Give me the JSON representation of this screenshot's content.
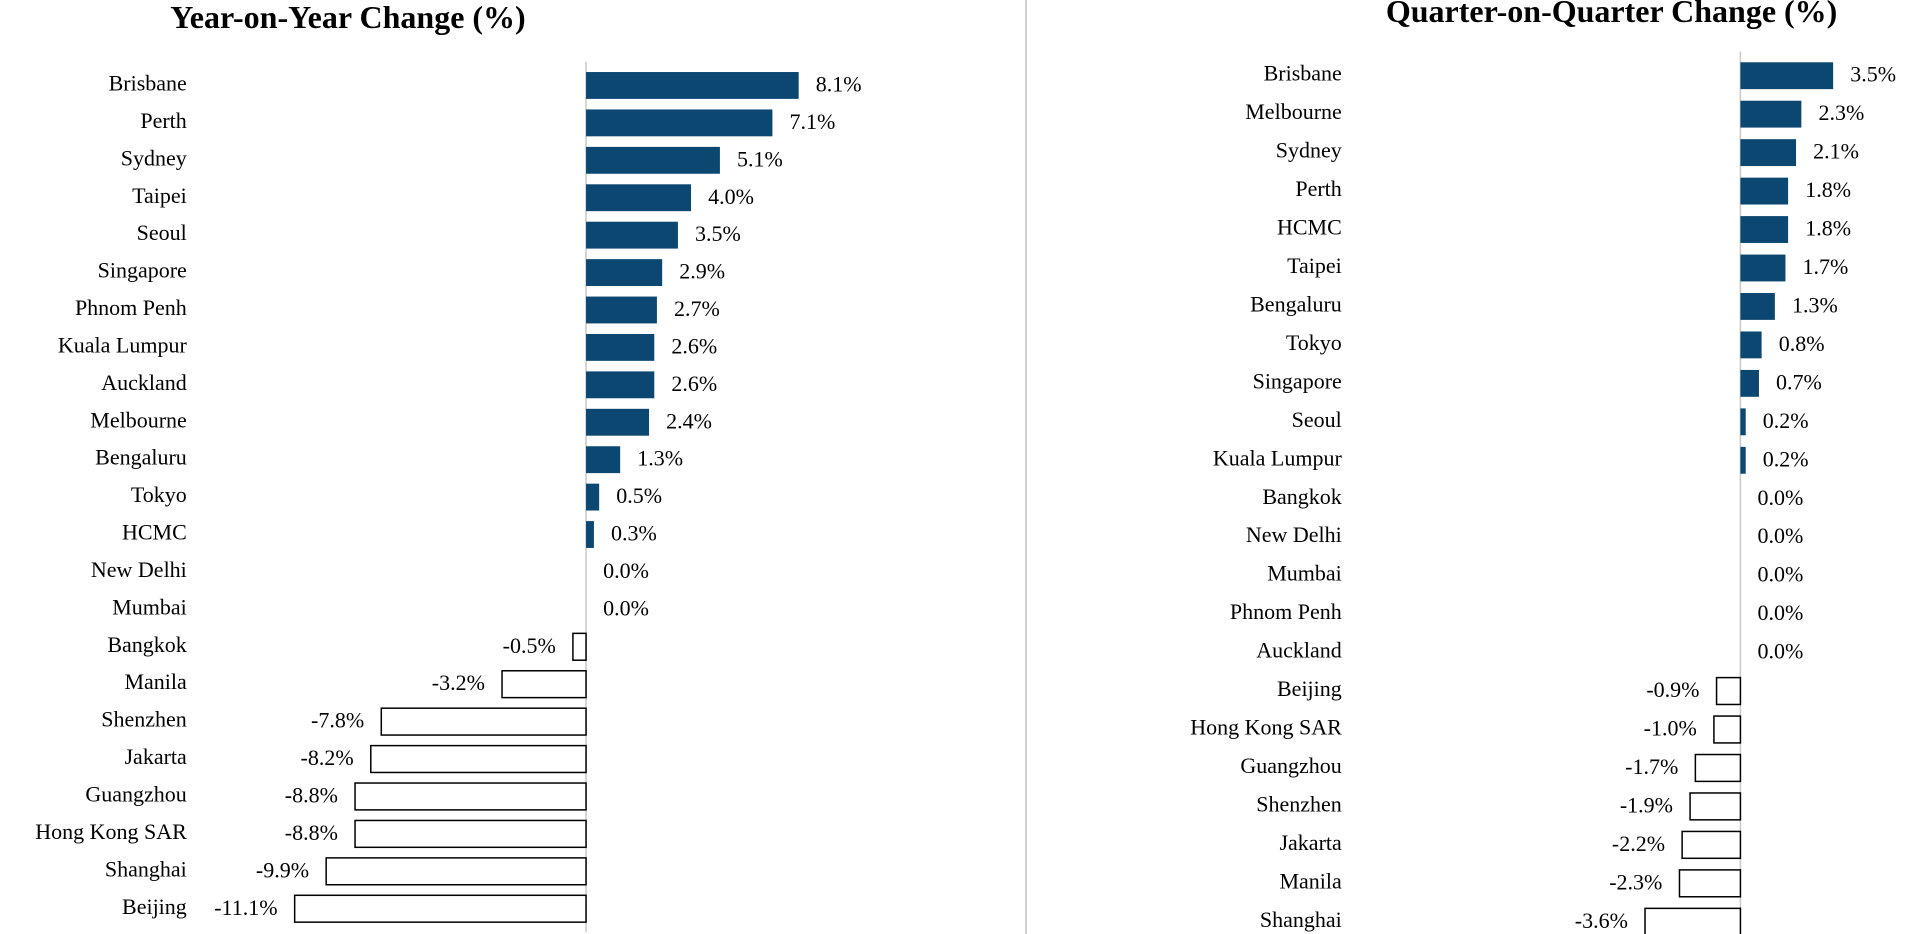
{
  "chart_data": [
    {
      "type": "barh",
      "title": "Year-on-Year Change (%)",
      "categories": [
        "Brisbane",
        "Perth",
        "Sydney",
        "Taipei",
        "Seoul",
        "Singapore",
        "Phnom Penh",
        "Kuala Lumpur",
        "Auckland",
        "Melbourne",
        "Bengaluru",
        "Tokyo",
        "HCMC",
        "New Delhi",
        "Mumbai",
        "Bangkok",
        "Manila",
        "Shenzhen",
        "Jakarta",
        "Guangzhou",
        "Hong Kong SAR",
        "Shanghai",
        "Beijing"
      ],
      "values": [
        8.1,
        7.1,
        5.1,
        4.0,
        3.5,
        2.9,
        2.7,
        2.6,
        2.6,
        2.4,
        1.3,
        0.5,
        0.3,
        0.0,
        0.0,
        -0.5,
        -3.2,
        -7.8,
        -8.2,
        -8.8,
        -8.8,
        -9.9,
        -11.1
      ],
      "value_labels": [
        "8.1%",
        "7.1%",
        "5.1%",
        "4.0%",
        "3.5%",
        "2.9%",
        "2.7%",
        "2.6%",
        "2.6%",
        "2.4%",
        "1.3%",
        "0.5%",
        "0.3%",
        "0.0%",
        "0.0%",
        "-0.5%",
        "-3.2%",
        "-7.8%",
        "-8.2%",
        "-8.8%",
        "-8.8%",
        "-9.9%",
        "-11.1%"
      ],
      "color": "#0b4770",
      "negative_color": "#ffffff",
      "negative_edge": "#000000",
      "xlim": [
        -12,
        10
      ]
    },
    {
      "type": "barh",
      "title": "Quarter-on-Quarter Change (%)",
      "categories": [
        "Brisbane",
        "Melbourne",
        "Sydney",
        "Perth",
        "HCMC",
        "Taipei",
        "Bengaluru",
        "Tokyo",
        "Singapore",
        "Seoul",
        "Kuala Lumpur",
        "Bangkok",
        "New Delhi",
        "Mumbai",
        "Phnom Penh",
        "Auckland",
        "Beijing",
        "Hong Kong SAR",
        "Guangzhou",
        "Shenzhen",
        "Jakarta",
        "Manila",
        "Shanghai"
      ],
      "values": [
        3.5,
        2.3,
        2.1,
        1.8,
        1.8,
        1.7,
        1.3,
        0.8,
        0.7,
        0.2,
        0.2,
        0.0,
        0.0,
        0.0,
        0.0,
        0.0,
        -0.9,
        -1.0,
        -1.7,
        -1.9,
        -2.2,
        -2.3,
        -3.6
      ],
      "value_labels": [
        "3.5%",
        "2.3%",
        "2.1%",
        "1.8%",
        "1.8%",
        "1.7%",
        "1.3%",
        "0.8%",
        "0.7%",
        "0.2%",
        "0.2%",
        "0.0%",
        "0.0%",
        "0.0%",
        "0.0%",
        "0.0%",
        "-0.9%",
        "-1.0%",
        "-1.7%",
        "-1.9%",
        "-2.2%",
        "-2.3%",
        "-3.6%"
      ],
      "color": "#0b4770",
      "negative_color": "#ffffff",
      "negative_edge": "#000000",
      "xlim": [
        -5,
        5
      ]
    }
  ]
}
